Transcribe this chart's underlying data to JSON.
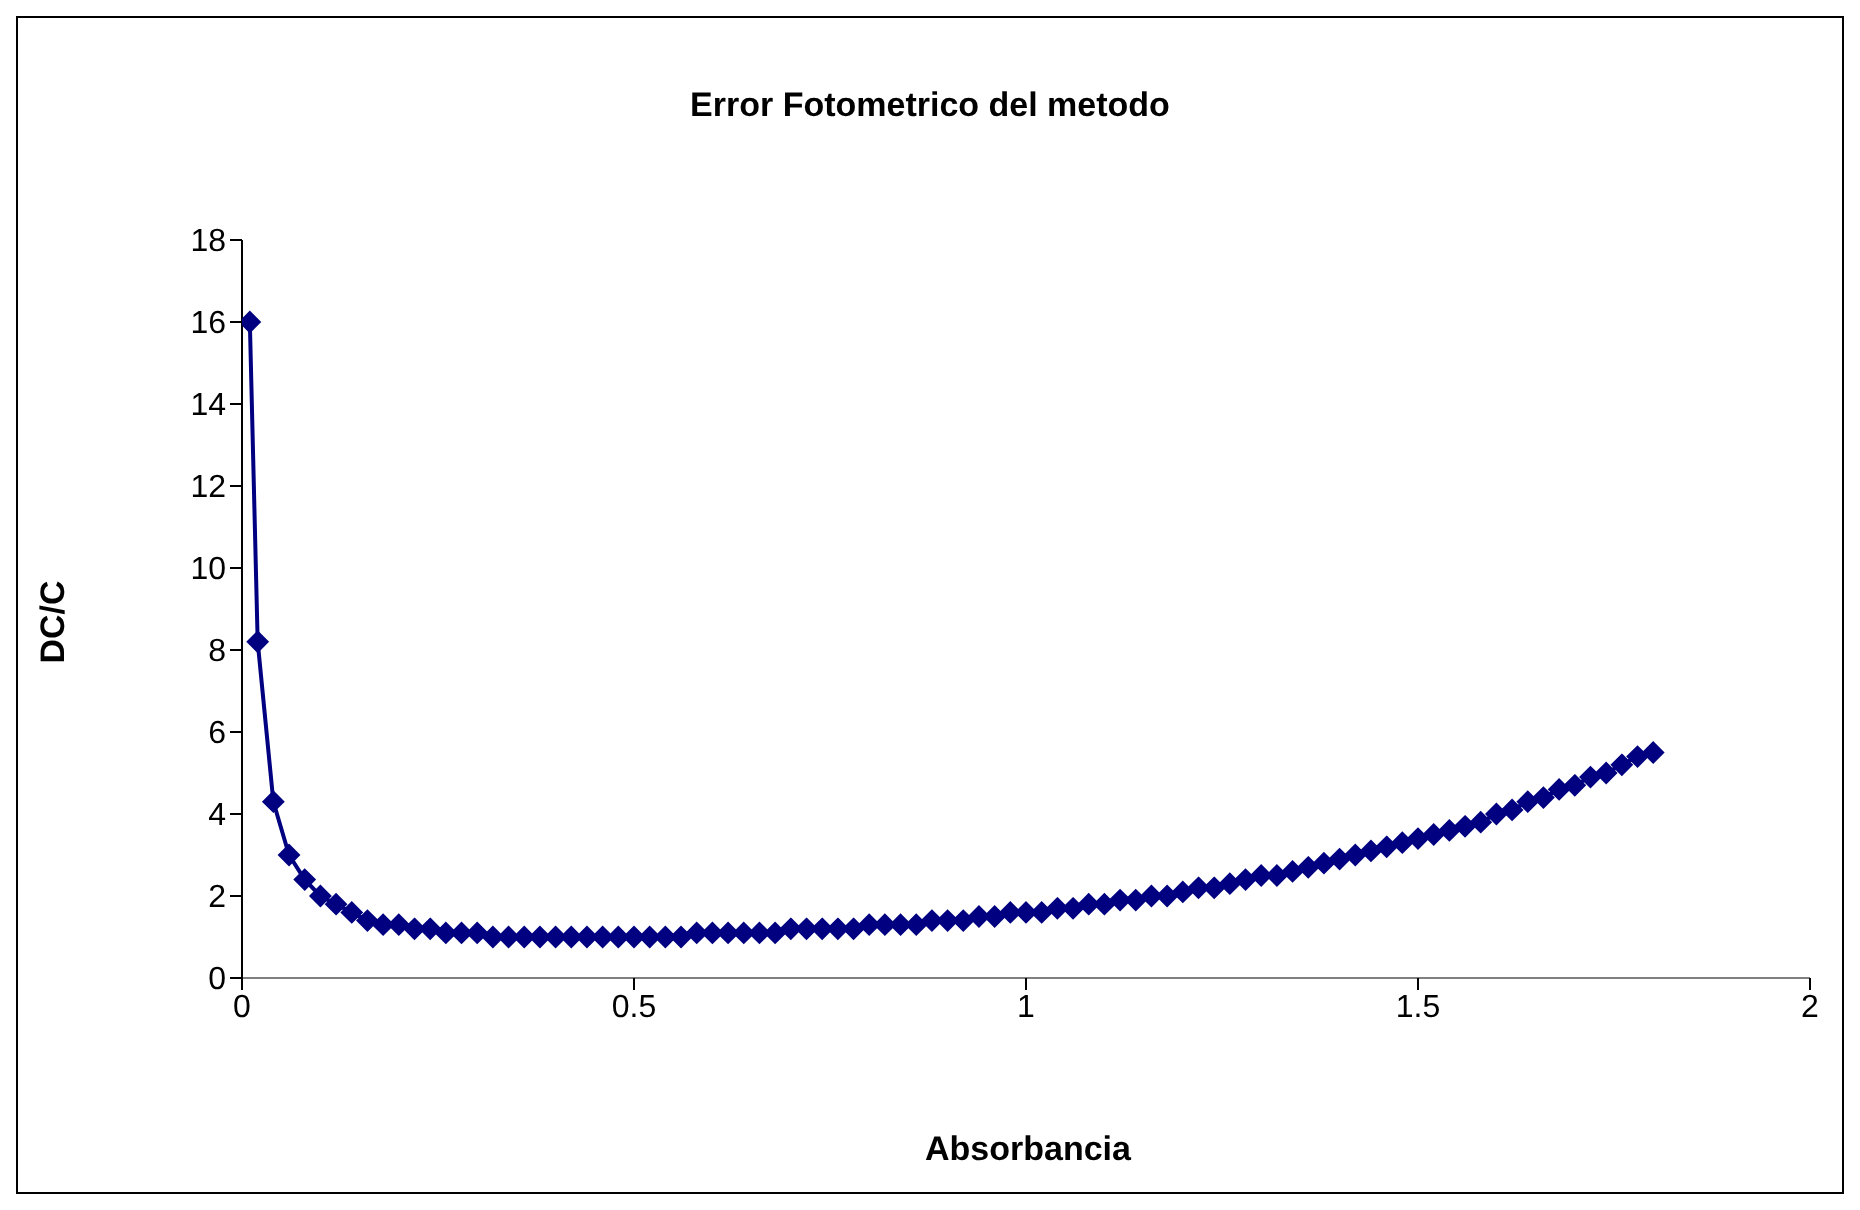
{
  "chart_data": {
    "type": "line",
    "title": "Error Fotometrico del metodo",
    "xlabel": "Absorbancia",
    "ylabel": "DC/C",
    "x": [
      0.01,
      0.02,
      0.04,
      0.06,
      0.08,
      0.1,
      0.12,
      0.14,
      0.16,
      0.18,
      0.2,
      0.22,
      0.24,
      0.26,
      0.28,
      0.3,
      0.32,
      0.34,
      0.36,
      0.38,
      0.4,
      0.42,
      0.44,
      0.46,
      0.48,
      0.5,
      0.52,
      0.54,
      0.56,
      0.58,
      0.6,
      0.62,
      0.64,
      0.66,
      0.68,
      0.7,
      0.72,
      0.74,
      0.76,
      0.78,
      0.8,
      0.82,
      0.84,
      0.86,
      0.88,
      0.9,
      0.92,
      0.94,
      0.96,
      0.98,
      1,
      1.02,
      1.04,
      1.06,
      1.08,
      1.1,
      1.12,
      1.14,
      1.16,
      1.18,
      1.2,
      1.22,
      1.24,
      1.26,
      1.28,
      1.3,
      1.32,
      1.34,
      1.36,
      1.38,
      1.4,
      1.42,
      1.44,
      1.46,
      1.48,
      1.5,
      1.52,
      1.54,
      1.56,
      1.58,
      1.6,
      1.62,
      1.64,
      1.66,
      1.68,
      1.7,
      1.72,
      1.74,
      1.76,
      1.78,
      1.8
    ],
    "series": [
      {
        "color": "#000080",
        "values": [
          16,
          8.2,
          4.3,
          3.0,
          2.4,
          2.0,
          1.8,
          1.6,
          1.4,
          1.3,
          1.3,
          1.2,
          1.2,
          1.1,
          1.1,
          1.1,
          1.0,
          1.0,
          1.0,
          1.0,
          1.0,
          1.0,
          1.0,
          1.0,
          1.0,
          1.0,
          1.0,
          1.0,
          1.0,
          1.1,
          1.1,
          1.1,
          1.1,
          1.1,
          1.1,
          1.2,
          1.2,
          1.2,
          1.2,
          1.2,
          1.3,
          1.3,
          1.3,
          1.3,
          1.4,
          1.4,
          1.4,
          1.5,
          1.5,
          1.6,
          1.6,
          1.6,
          1.7,
          1.7,
          1.8,
          1.8,
          1.9,
          1.9,
          2.0,
          2.0,
          2.1,
          2.2,
          2.2,
          2.3,
          2.4,
          2.5,
          2.5,
          2.6,
          2.7,
          2.8,
          2.9,
          3.0,
          3.1,
          3.2,
          3.3,
          3.4,
          3.5,
          3.6,
          3.7,
          3.8,
          4.0,
          4.1,
          4.3,
          4.4,
          4.6,
          4.7,
          4.9,
          5.0,
          5.2,
          5.4,
          5.5
        ]
      }
    ],
    "xlim": [
      0,
      2
    ],
    "xticks": [
      0,
      0.5,
      1,
      1.5,
      2
    ],
    "ylim": [
      0,
      18
    ],
    "yticks": [
      0,
      2,
      4,
      6,
      8,
      10,
      12,
      14,
      16,
      18
    ],
    "grid": false,
    "legend": false,
    "marker": "diamond",
    "line_style": "solid"
  }
}
